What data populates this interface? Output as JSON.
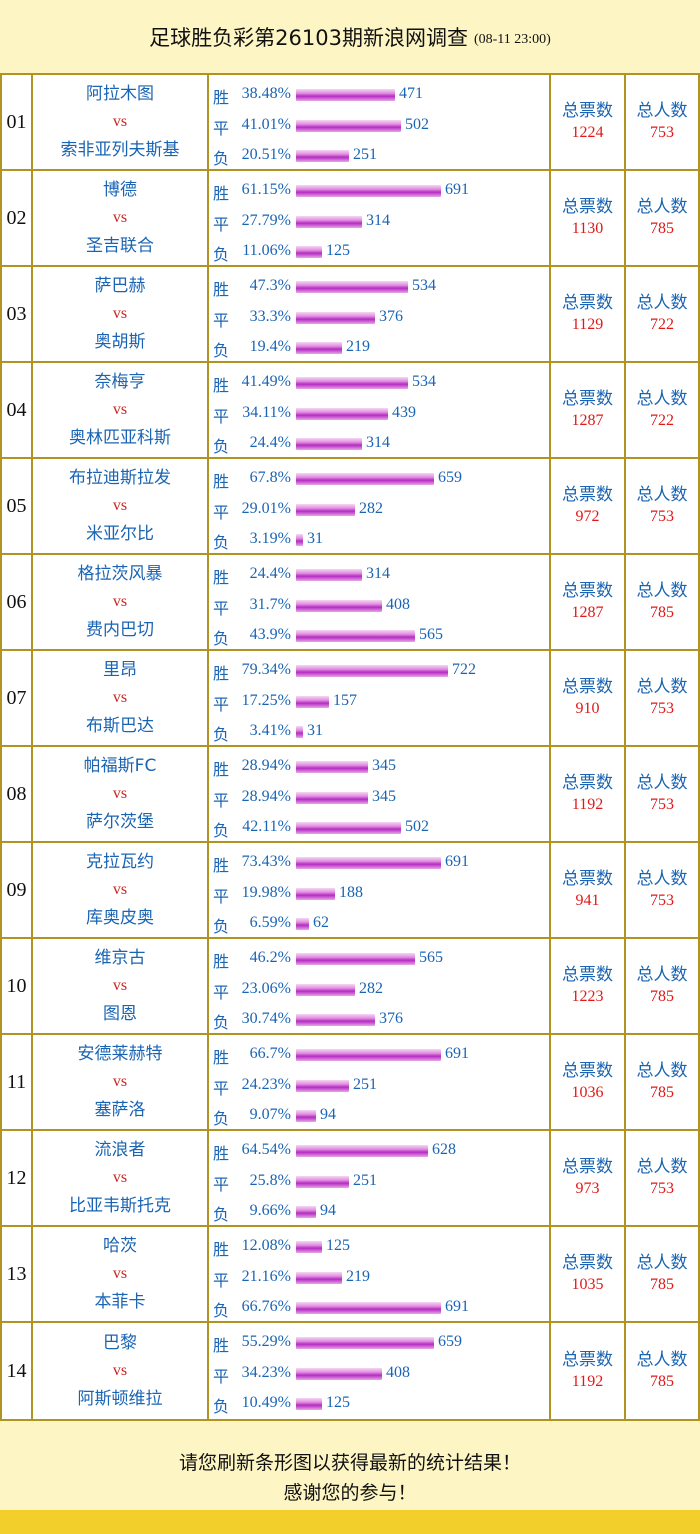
{
  "header": {
    "title": "足球胜负彩第26103期新浪网调查",
    "time": "(08-11 23:00)"
  },
  "labels": {
    "vs": "vs",
    "win": "胜",
    "draw": "平",
    "loss": "负",
    "total_votes": "总票数",
    "total_people": "总人数"
  },
  "footer": {
    "line1": "请您刷新条形图以获得最新的统计结果！",
    "line2": "感谢您的参与！"
  },
  "chart_data": {
    "type": "bar",
    "title": "足球胜负彩第26103期新浪网调查",
    "matches": [
      {
        "no": "01",
        "home": "阿拉木图",
        "away": "索非亚列夫斯基",
        "win_pct": "38.48%",
        "draw_pct": "41.01%",
        "loss_pct": "20.51%",
        "win": 471,
        "draw": 502,
        "loss": 251,
        "total_votes": "1224",
        "total_people": "753"
      },
      {
        "no": "02",
        "home": "博德",
        "away": "圣吉联合",
        "win_pct": "61.15%",
        "draw_pct": "27.79%",
        "loss_pct": "11.06%",
        "win": 691,
        "draw": 314,
        "loss": 125,
        "total_votes": "1130",
        "total_people": "785"
      },
      {
        "no": "03",
        "home": "萨巴赫",
        "away": "奥胡斯",
        "win_pct": "47.3%",
        "draw_pct": "33.3%",
        "loss_pct": "19.4%",
        "win": 534,
        "draw": 376,
        "loss": 219,
        "total_votes": "1129",
        "total_people": "722"
      },
      {
        "no": "04",
        "home": "奈梅亨",
        "away": "奥林匹亚科斯",
        "win_pct": "41.49%",
        "draw_pct": "34.11%",
        "loss_pct": "24.4%",
        "win": 534,
        "draw": 439,
        "loss": 314,
        "total_votes": "1287",
        "total_people": "722"
      },
      {
        "no": "05",
        "home": "布拉迪斯拉发",
        "away": "米亚尔比",
        "win_pct": "67.8%",
        "draw_pct": "29.01%",
        "loss_pct": "3.19%",
        "win": 659,
        "draw": 282,
        "loss": 31,
        "total_votes": "972",
        "total_people": "753"
      },
      {
        "no": "06",
        "home": "格拉茨风暴",
        "away": "费内巴切",
        "win_pct": "24.4%",
        "draw_pct": "31.7%",
        "loss_pct": "43.9%",
        "win": 314,
        "draw": 408,
        "loss": 565,
        "total_votes": "1287",
        "total_people": "785"
      },
      {
        "no": "07",
        "home": "里昂",
        "away": "布斯巴达",
        "win_pct": "79.34%",
        "draw_pct": "17.25%",
        "loss_pct": "3.41%",
        "win": 722,
        "draw": 157,
        "loss": 31,
        "total_votes": "910",
        "total_people": "753"
      },
      {
        "no": "08",
        "home": "帕福斯FC",
        "away": "萨尔茨堡",
        "win_pct": "28.94%",
        "draw_pct": "28.94%",
        "loss_pct": "42.11%",
        "win": 345,
        "draw": 345,
        "loss": 502,
        "total_votes": "1192",
        "total_people": "753"
      },
      {
        "no": "09",
        "home": "克拉瓦约",
        "away": "库奥皮奥",
        "win_pct": "73.43%",
        "draw_pct": "19.98%",
        "loss_pct": "6.59%",
        "win": 691,
        "draw": 188,
        "loss": 62,
        "total_votes": "941",
        "total_people": "753"
      },
      {
        "no": "10",
        "home": "维京古",
        "away": "图恩",
        "win_pct": "46.2%",
        "draw_pct": "23.06%",
        "loss_pct": "30.74%",
        "win": 565,
        "draw": 282,
        "loss": 376,
        "total_votes": "1223",
        "total_people": "785"
      },
      {
        "no": "11",
        "home": "安德莱赫特",
        "away": "塞萨洛",
        "win_pct": "66.7%",
        "draw_pct": "24.23%",
        "loss_pct": "9.07%",
        "win": 691,
        "draw": 251,
        "loss": 94,
        "total_votes": "1036",
        "total_people": "785"
      },
      {
        "no": "12",
        "home": "流浪者",
        "away": "比亚韦斯托克",
        "win_pct": "64.54%",
        "draw_pct": "25.8%",
        "loss_pct": "9.66%",
        "win": 628,
        "draw": 251,
        "loss": 94,
        "total_votes": "973",
        "total_people": "753"
      },
      {
        "no": "13",
        "home": "哈茨",
        "away": "本菲卡",
        "win_pct": "12.08%",
        "draw_pct": "21.16%",
        "loss_pct": "66.76%",
        "win": 125,
        "draw": 219,
        "loss": 691,
        "total_votes": "1035",
        "total_people": "785"
      },
      {
        "no": "14",
        "home": "巴黎",
        "away": "阿斯顿维拉",
        "win_pct": "55.29%",
        "draw_pct": "34.23%",
        "loss_pct": "10.49%",
        "win": 659,
        "draw": 408,
        "loss": 125,
        "total_votes": "1192",
        "total_people": "785"
      }
    ]
  }
}
